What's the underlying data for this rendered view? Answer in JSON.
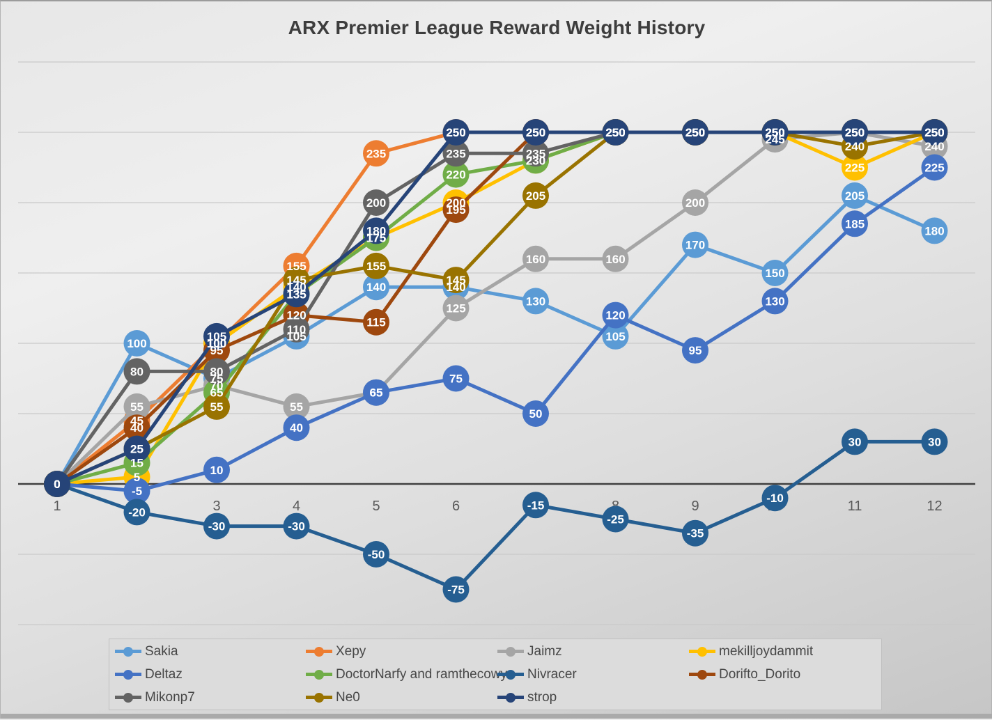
{
  "title": "ARX Premier League Reward Weight History",
  "x_ticks": [
    "1",
    "2",
    "3",
    "4",
    "5",
    "6",
    "7",
    "8",
    "9",
    "10",
    "11",
    "12"
  ],
  "palette": {
    "grid_color": "#c9c9c9",
    "zero_axis_color": "#3f3f3f",
    "tick_color": "#595959",
    "label_text_color": "#ffffff",
    "legend_bg": "#dcdcdc"
  },
  "chart_data": {
    "type": "line",
    "title": "ARX Premier League Reward Weight History",
    "xlabel": "",
    "ylabel": "",
    "x": [
      1,
      2,
      3,
      4,
      5,
      6,
      7,
      8,
      9,
      10,
      11,
      12
    ],
    "ylim": [
      -100,
      300
    ],
    "grid_step": 50,
    "grid": true,
    "y_axis_labels_visible": false,
    "legend_position": "bottom",
    "marker_labels": true,
    "series": [
      {
        "name": "Sakia",
        "color": "#5B9BD5",
        "values": [
          0,
          100,
          75,
          105,
          140,
          140,
          130,
          105,
          170,
          150,
          205,
          180
        ]
      },
      {
        "name": "Xepy",
        "color": "#ED7D31",
        "values": [
          0,
          45,
          100,
          155,
          235,
          250,
          250,
          250,
          250,
          250,
          250,
          250
        ]
      },
      {
        "name": "Jaimz",
        "color": "#A5A5A5",
        "values": [
          0,
          55,
          70,
          55,
          65,
          125,
          160,
          160,
          200,
          245,
          250,
          240
        ]
      },
      {
        "name": "mekilljoydammit",
        "color": "#FFC000",
        "values": [
          0,
          5,
          100,
          140,
          175,
          200,
          230,
          250,
          250,
          250,
          225,
          250
        ]
      },
      {
        "name": "Deltaz",
        "color": "#4472C4",
        "values": [
          0,
          -5,
          10,
          40,
          65,
          75,
          50,
          120,
          95,
          130,
          185,
          225
        ]
      },
      {
        "name": "DoctorNarfy and ramthecowy",
        "color": "#70AD47",
        "values": [
          0,
          15,
          65,
          135,
          175,
          220,
          230,
          250,
          250,
          250,
          250,
          250
        ]
      },
      {
        "name": "Nivracer",
        "color": "#255E91",
        "values": [
          0,
          -20,
          -30,
          -30,
          -50,
          -75,
          -15,
          -25,
          -35,
          -10,
          30,
          30
        ]
      },
      {
        "name": "Dorifto_Dorito",
        "color": "#9E480E",
        "values": [
          0,
          40,
          95,
          120,
          115,
          195,
          250,
          250,
          250,
          250,
          250,
          250
        ]
      },
      {
        "name": "Mikonp7",
        "color": "#636363",
        "values": [
          0,
          80,
          80,
          110,
          200,
          235,
          235,
          250,
          250,
          250,
          250,
          250
        ]
      },
      {
        "name": "Ne0",
        "color": "#997300",
        "values": [
          0,
          25,
          55,
          145,
          155,
          145,
          205,
          250,
          250,
          250,
          240,
          250
        ]
      },
      {
        "name": "strop",
        "color": "#264478",
        "values": [
          0,
          25,
          105,
          135,
          180,
          250,
          250,
          250,
          250,
          250,
          250,
          250
        ]
      }
    ]
  }
}
